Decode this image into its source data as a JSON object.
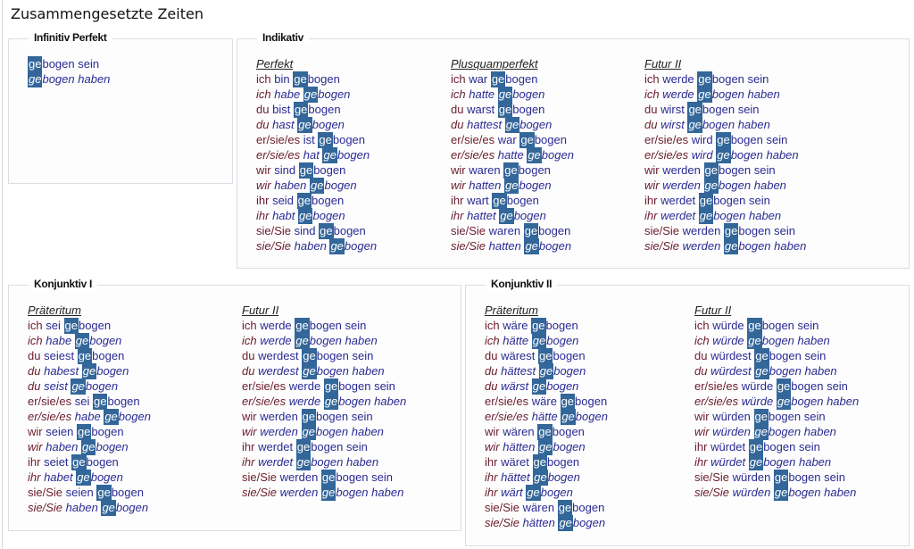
{
  "title": "Zusammengesetzte Zeiten",
  "colors": {
    "highlight": "#336699",
    "pronoun": "#6a1c2c",
    "verb": "#2a2a92"
  },
  "stem": "bogen",
  "prefix": "ge",
  "sections": [
    {
      "legend": "Infinitiv Perfekt",
      "columns": [
        {
          "heading": "",
          "rows": [
            {
              "p": "",
              "a": "",
              "s": "sein",
              "i": false
            },
            {
              "p": "",
              "a": "",
              "s": "haben",
              "i": true
            }
          ]
        }
      ]
    },
    {
      "legend": "Indikativ",
      "columns": [
        {
          "heading": "Perfekt",
          "rows": [
            {
              "p": "ich",
              "a": "bin",
              "s": "",
              "i": false
            },
            {
              "p": "ich",
              "a": "habe",
              "s": "",
              "i": true
            },
            {
              "p": "du",
              "a": "bist",
              "s": "",
              "i": false
            },
            {
              "p": "du",
              "a": "hast",
              "s": "",
              "i": true
            },
            {
              "p": "er/sie/es",
              "a": "ist",
              "s": "",
              "i": false
            },
            {
              "p": "er/sie/es",
              "a": "hat",
              "s": "",
              "i": true
            },
            {
              "p": "wir",
              "a": "sind",
              "s": "",
              "i": false
            },
            {
              "p": "wir",
              "a": "haben",
              "s": "",
              "i": true
            },
            {
              "p": "ihr",
              "a": "seid",
              "s": "",
              "i": false
            },
            {
              "p": "ihr",
              "a": "habt",
              "s": "",
              "i": true
            },
            {
              "p": "sie/Sie",
              "a": "sind",
              "s": "",
              "i": false
            },
            {
              "p": "sie/Sie",
              "a": "haben",
              "s": "",
              "i": true
            }
          ]
        },
        {
          "heading": "Plusquamperfekt",
          "rows": [
            {
              "p": "ich",
              "a": "war",
              "s": "",
              "i": false
            },
            {
              "p": "ich",
              "a": "hatte",
              "s": "",
              "i": true
            },
            {
              "p": "du",
              "a": "warst",
              "s": "",
              "i": false
            },
            {
              "p": "du",
              "a": "hattest",
              "s": "",
              "i": true
            },
            {
              "p": "er/sie/es",
              "a": "war",
              "s": "",
              "i": false
            },
            {
              "p": "er/sie/es",
              "a": "hatte",
              "s": "",
              "i": true
            },
            {
              "p": "wir",
              "a": "waren",
              "s": "",
              "i": false
            },
            {
              "p": "wir",
              "a": "hatten",
              "s": "",
              "i": true
            },
            {
              "p": "ihr",
              "a": "wart",
              "s": "",
              "i": false
            },
            {
              "p": "ihr",
              "a": "hattet",
              "s": "",
              "i": true
            },
            {
              "p": "sie/Sie",
              "a": "waren",
              "s": "",
              "i": false
            },
            {
              "p": "sie/Sie",
              "a": "hatten",
              "s": "",
              "i": true
            }
          ]
        },
        {
          "heading": "Futur II",
          "rows": [
            {
              "p": "ich",
              "a": "werde",
              "s": "sein",
              "i": false
            },
            {
              "p": "ich",
              "a": "werde",
              "s": "haben",
              "i": true
            },
            {
              "p": "du",
              "a": "wirst",
              "s": "sein",
              "i": false
            },
            {
              "p": "du",
              "a": "wirst",
              "s": "haben",
              "i": true
            },
            {
              "p": "er/sie/es",
              "a": "wird",
              "s": "sein",
              "i": false
            },
            {
              "p": "er/sie/es",
              "a": "wird",
              "s": "haben",
              "i": true
            },
            {
              "p": "wir",
              "a": "werden",
              "s": "sein",
              "i": false
            },
            {
              "p": "wir",
              "a": "werden",
              "s": "haben",
              "i": true
            },
            {
              "p": "ihr",
              "a": "werdet",
              "s": "sein",
              "i": false
            },
            {
              "p": "ihr",
              "a": "werdet",
              "s": "haben",
              "i": true
            },
            {
              "p": "sie/Sie",
              "a": "werden",
              "s": "sein",
              "i": false
            },
            {
              "p": "sie/Sie",
              "a": "werden",
              "s": "haben",
              "i": true
            }
          ]
        }
      ]
    },
    {
      "legend": "Konjunktiv I",
      "columns": [
        {
          "heading": "Präteritum",
          "rows": [
            {
              "p": "ich",
              "a": "sei",
              "s": "",
              "i": false
            },
            {
              "p": "ich",
              "a": "habe",
              "s": "",
              "i": true
            },
            {
              "p": "du",
              "a": "seiest",
              "s": "",
              "i": false
            },
            {
              "p": "du",
              "a": "habest",
              "s": "",
              "i": true
            },
            {
              "p": "du",
              "a": "seist",
              "s": "",
              "i": true
            },
            {
              "p": "er/sie/es",
              "a": "sei",
              "s": "",
              "i": false
            },
            {
              "p": "er/sie/es",
              "a": "habe",
              "s": "",
              "i": true
            },
            {
              "p": "wir",
              "a": "seien",
              "s": "",
              "i": false
            },
            {
              "p": "wir",
              "a": "haben",
              "s": "",
              "i": true
            },
            {
              "p": "ihr",
              "a": "seiet",
              "s": "",
              "i": false
            },
            {
              "p": "ihr",
              "a": "habet",
              "s": "",
              "i": true
            },
            {
              "p": "sie/Sie",
              "a": "seien",
              "s": "",
              "i": false
            },
            {
              "p": "sie/Sie",
              "a": "haben",
              "s": "",
              "i": true
            }
          ]
        },
        {
          "heading": "Futur II",
          "rows": [
            {
              "p": "ich",
              "a": "werde",
              "s": "sein",
              "i": false
            },
            {
              "p": "ich",
              "a": "werde",
              "s": "haben",
              "i": true
            },
            {
              "p": "du",
              "a": "werdest",
              "s": "sein",
              "i": false
            },
            {
              "p": "du",
              "a": "werdest",
              "s": "haben",
              "i": true
            },
            {
              "p": "er/sie/es",
              "a": "werde",
              "s": "sein",
              "i": false
            },
            {
              "p": "er/sie/es",
              "a": "werde",
              "s": "haben",
              "i": true
            },
            {
              "p": "wir",
              "a": "werden",
              "s": "sein",
              "i": false
            },
            {
              "p": "wir",
              "a": "werden",
              "s": "haben",
              "i": true
            },
            {
              "p": "ihr",
              "a": "werdet",
              "s": "sein",
              "i": false
            },
            {
              "p": "ihr",
              "a": "werdet",
              "s": "haben",
              "i": true
            },
            {
              "p": "sie/Sie",
              "a": "werden",
              "s": "sein",
              "i": false
            },
            {
              "p": "sie/Sie",
              "a": "werden",
              "s": "haben",
              "i": true
            }
          ]
        }
      ]
    },
    {
      "legend": "Konjunktiv II",
      "columns": [
        {
          "heading": "Präteritum",
          "rows": [
            {
              "p": "ich",
              "a": "wäre",
              "s": "",
              "i": false
            },
            {
              "p": "ich",
              "a": "hätte",
              "s": "",
              "i": true
            },
            {
              "p": "du",
              "a": "wärest",
              "s": "",
              "i": false
            },
            {
              "p": "du",
              "a": "hättest",
              "s": "",
              "i": true
            },
            {
              "p": "du",
              "a": "wärst",
              "s": "",
              "i": true
            },
            {
              "p": "er/sie/es",
              "a": "wäre",
              "s": "",
              "i": false
            },
            {
              "p": "er/sie/es",
              "a": "hätte",
              "s": "",
              "i": true
            },
            {
              "p": "wir",
              "a": "wären",
              "s": "",
              "i": false
            },
            {
              "p": "wir",
              "a": "hätten",
              "s": "",
              "i": true
            },
            {
              "p": "ihr",
              "a": "wäret",
              "s": "",
              "i": false
            },
            {
              "p": "ihr",
              "a": "hättet",
              "s": "",
              "i": true
            },
            {
              "p": "ihr",
              "a": "wärt",
              "s": "",
              "i": true
            },
            {
              "p": "sie/Sie",
              "a": "wären",
              "s": "",
              "i": false
            },
            {
              "p": "sie/Sie",
              "a": "hätten",
              "s": "",
              "i": true
            }
          ]
        },
        {
          "heading": "Futur II",
          "rows": [
            {
              "p": "ich",
              "a": "würde",
              "s": "sein",
              "i": false
            },
            {
              "p": "ich",
              "a": "würde",
              "s": "haben",
              "i": true
            },
            {
              "p": "du",
              "a": "würdest",
              "s": "sein",
              "i": false
            },
            {
              "p": "du",
              "a": "würdest",
              "s": "haben",
              "i": true
            },
            {
              "p": "er/sie/es",
              "a": "würde",
              "s": "sein",
              "i": false
            },
            {
              "p": "er/sie/es",
              "a": "würde",
              "s": "haben",
              "i": true
            },
            {
              "p": "wir",
              "a": "würden",
              "s": "sein",
              "i": false
            },
            {
              "p": "wir",
              "a": "würden",
              "s": "haben",
              "i": true
            },
            {
              "p": "ihr",
              "a": "würdet",
              "s": "sein",
              "i": false
            },
            {
              "p": "ihr",
              "a": "würdet",
              "s": "haben",
              "i": true
            },
            {
              "p": "sie/Sie",
              "a": "würden",
              "s": "sein",
              "i": false
            },
            {
              "p": "sie/Sie",
              "a": "würden",
              "s": "haben",
              "i": true
            }
          ]
        }
      ]
    }
  ]
}
